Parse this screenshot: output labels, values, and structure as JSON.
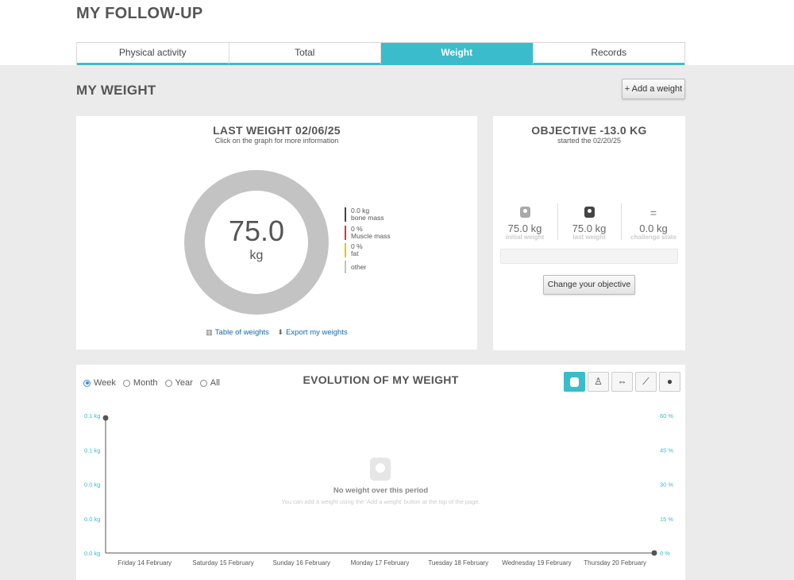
{
  "page": {
    "title": "MY FOLLOW-UP"
  },
  "tabs": [
    {
      "label": "Physical activity"
    },
    {
      "label": "Total"
    },
    {
      "label": "Weight"
    },
    {
      "label": "Records"
    }
  ],
  "section": {
    "title": "MY WEIGHT",
    "add_button": "+ Add a weight"
  },
  "last_weight": {
    "title": "LAST WEIGHT 02/06/25",
    "subtitle": "Click on the graph for more information",
    "value": "75.0",
    "unit": "kg",
    "legend": [
      {
        "value": "0.0 kg",
        "label": "bone mass",
        "color": "#444444"
      },
      {
        "value": "0 %",
        "label": "Muscle mass",
        "color": "#d9342b"
      },
      {
        "value": "0 %",
        "label": "fat",
        "color": "#e8c200"
      },
      {
        "value": "",
        "label": "other",
        "color": "#c3c3c3"
      }
    ],
    "table_link": "Table of weights",
    "export_link": "Export my weights"
  },
  "objective": {
    "title": "OBJECTIVE -13.0 KG",
    "subtitle": "started the 02/20/25",
    "initial": {
      "value": "75.0 kg",
      "label": "initial weight",
      "icon": "scale-icon"
    },
    "last": {
      "value": "75.0 kg",
      "label": "last weight",
      "icon": "scale-icon"
    },
    "challenge": {
      "value": "0.0 kg",
      "label": "challenge state",
      "symbol": "="
    },
    "progress": 0,
    "change_button": "Change your objective"
  },
  "evolution": {
    "title": "EVOLUTION OF MY WEIGHT",
    "periods": [
      "Week",
      "Month",
      "Year",
      "All"
    ],
    "selected_period": "Week",
    "empty_title": "No weight over this period",
    "empty_text": "You can add a weight using the 'Add a weight' button at the top of the page.",
    "accent": "#3bbccc"
  },
  "chart_data": {
    "type": "line",
    "x": [
      "Friday 14 February",
      "Saturday 15 February",
      "Sunday 16 February",
      "Monday 17 February",
      "Tuesday 18 February",
      "Wednesday 19 February",
      "Thursday 20 February"
    ],
    "y_left_ticks": [
      "0.1 kg",
      "0.1 kg",
      "0.0 kg",
      "0.0 kg",
      "0.0 kg"
    ],
    "y_right_ticks": [
      "60 %",
      "45 %",
      "30 %",
      "15 %",
      "0 %"
    ],
    "ylim_right": [
      0,
      60
    ],
    "series": [],
    "grid": false
  }
}
